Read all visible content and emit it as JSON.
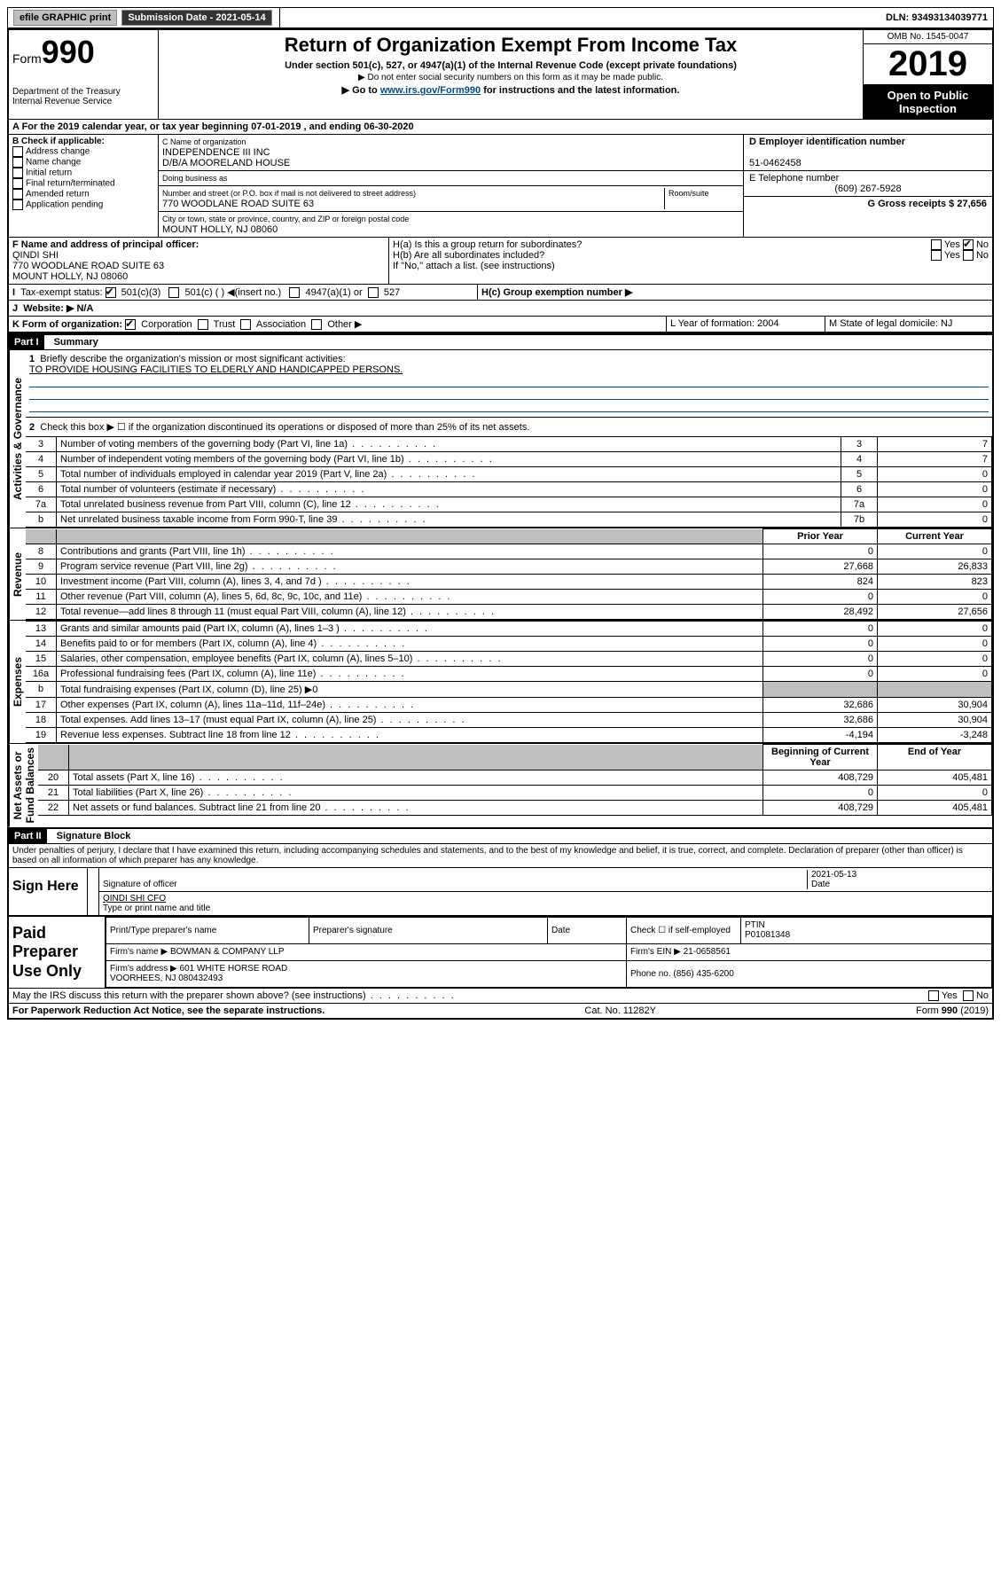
{
  "topbar": {
    "efile": "efile GRAPHIC print",
    "submission": "Submission Date - 2021-05-14",
    "dln": "DLN: 93493134039771"
  },
  "header": {
    "form_label": "Form",
    "form_no": "990",
    "dept": "Department of the Treasury\nInternal Revenue Service",
    "title": "Return of Organization Exempt From Income Tax",
    "sub1": "Under section 501(c), 527, or 4947(a)(1) of the Internal Revenue Code (except private foundations)",
    "sub2": "▶ Do not enter social security numbers on this form as it may be made public.",
    "sub3_pre": "▶ Go to ",
    "sub3_link": "www.irs.gov/Form990",
    "sub3_post": " for instructions and the latest information.",
    "omb": "OMB No. 1545-0047",
    "year": "2019",
    "open": "Open to Public Inspection"
  },
  "row_a": "A For the 2019 calendar year, or tax year beginning 07-01-2019   , and ending 06-30-2020",
  "col_b": {
    "title": "B Check if applicable:",
    "items": [
      "Address change",
      "Name change",
      "Initial return",
      "Final return/terminated",
      "Amended return",
      "Application pending"
    ]
  },
  "col_c": {
    "name_lbl": "C Name of organization",
    "name": "INDEPENDENCE III INC\nD/B/A MOORELAND HOUSE",
    "dba_lbl": "Doing business as",
    "addr_lbl": "Number and street (or P.O. box if mail is not delivered to street address)",
    "room_lbl": "Room/suite",
    "addr": "770 WOODLANE ROAD SUITE 63",
    "city_lbl": "City or town, state or province, country, and ZIP or foreign postal code",
    "city": "MOUNT HOLLY, NJ  08060"
  },
  "col_d": {
    "d": "D Employer identification number",
    "ein": "51-0462458",
    "e": "E Telephone number",
    "phone": "(609) 267-5928",
    "g": "G Gross receipts $ 27,656"
  },
  "fgj": {
    "f_lbl": "F  Name and address of principal officer:",
    "f_name": "QINDI SHI\n770 WOODLANE ROAD SUITE 63\nMOUNT HOLLY, NJ  08060",
    "h_a": "H(a)  Is this a group return for subordinates?",
    "h_b": "H(b)  Are all subordinates included?",
    "h_note": "If \"No,\" attach a list. (see instructions)",
    "h_c": "H(c)  Group exemption number ▶",
    "i": "Tax-exempt status:",
    "i_501c3": "501(c)(3)",
    "i_501c": "501(c) (   ) ◀(insert no.)",
    "i_4947": "4947(a)(1) or",
    "i_527": "527",
    "j": "Website: ▶  N/A",
    "yes": "Yes",
    "no": "No"
  },
  "row_k": {
    "k": "K Form of organization:",
    "corp": "Corporation",
    "trust": "Trust",
    "assoc": "Association",
    "other": "Other ▶",
    "l": "L Year of formation: 2004",
    "m": "M State of legal domicile: NJ"
  },
  "part1": {
    "label": "Part I",
    "title": "Summary",
    "side_gov": "Activities & Governance",
    "side_rev": "Revenue",
    "side_exp": "Expenses",
    "side_net": "Net Assets or\nFund Balances",
    "line1": "Briefly describe the organization's mission or most significant activities:",
    "mission": "TO PROVIDE HOUSING FACILITIES TO ELDERLY AND HANDICAPPED PERSONS.",
    "line2": "Check this box ▶ ☐  if the organization discontinued its operations or disposed of more than 25% of its net assets.",
    "rows_gov": [
      {
        "n": "3",
        "d": "Number of voting members of the governing body (Part VI, line 1a)",
        "b": "3",
        "v": "7"
      },
      {
        "n": "4",
        "d": "Number of independent voting members of the governing body (Part VI, line 1b)",
        "b": "4",
        "v": "7"
      },
      {
        "n": "5",
        "d": "Total number of individuals employed in calendar year 2019 (Part V, line 2a)",
        "b": "5",
        "v": "0"
      },
      {
        "n": "6",
        "d": "Total number of volunteers (estimate if necessary)",
        "b": "6",
        "v": "0"
      },
      {
        "n": "7a",
        "d": "Total unrelated business revenue from Part VIII, column (C), line 12",
        "b": "7a",
        "v": "0"
      },
      {
        "n": "b",
        "d": "Net unrelated business taxable income from Form 990-T, line 39",
        "b": "7b",
        "v": "0"
      }
    ],
    "hdr_prior": "Prior Year",
    "hdr_curr": "Current Year",
    "rows_rev": [
      {
        "n": "8",
        "d": "Contributions and grants (Part VIII, line 1h)",
        "p": "0",
        "c": "0"
      },
      {
        "n": "9",
        "d": "Program service revenue (Part VIII, line 2g)",
        "p": "27,668",
        "c": "26,833"
      },
      {
        "n": "10",
        "d": "Investment income (Part VIII, column (A), lines 3, 4, and 7d )",
        "p": "824",
        "c": "823"
      },
      {
        "n": "11",
        "d": "Other revenue (Part VIII, column (A), lines 5, 6d, 8c, 9c, 10c, and 11e)",
        "p": "0",
        "c": "0"
      },
      {
        "n": "12",
        "d": "Total revenue—add lines 8 through 11 (must equal Part VIII, column (A), line 12)",
        "p": "28,492",
        "c": "27,656"
      }
    ],
    "rows_exp": [
      {
        "n": "13",
        "d": "Grants and similar amounts paid (Part IX, column (A), lines 1–3 )",
        "p": "0",
        "c": "0"
      },
      {
        "n": "14",
        "d": "Benefits paid to or for members (Part IX, column (A), line 4)",
        "p": "0",
        "c": "0"
      },
      {
        "n": "15",
        "d": "Salaries, other compensation, employee benefits (Part IX, column (A), lines 5–10)",
        "p": "0",
        "c": "0"
      },
      {
        "n": "16a",
        "d": "Professional fundraising fees (Part IX, column (A), line 11e)",
        "p": "0",
        "c": "0"
      },
      {
        "n": "b",
        "d": "Total fundraising expenses (Part IX, column (D), line 25) ▶0",
        "p": "",
        "c": ""
      },
      {
        "n": "17",
        "d": "Other expenses (Part IX, column (A), lines 11a–11d, 11f–24e)",
        "p": "32,686",
        "c": "30,904"
      },
      {
        "n": "18",
        "d": "Total expenses. Add lines 13–17 (must equal Part IX, column (A), line 25)",
        "p": "32,686",
        "c": "30,904"
      },
      {
        "n": "19",
        "d": "Revenue less expenses. Subtract line 18 from line 12",
        "p": "-4,194",
        "c": "-3,248"
      }
    ],
    "hdr_beg": "Beginning of Current Year",
    "hdr_end": "End of Year",
    "rows_net": [
      {
        "n": "20",
        "d": "Total assets (Part X, line 16)",
        "p": "408,729",
        "c": "405,481"
      },
      {
        "n": "21",
        "d": "Total liabilities (Part X, line 26)",
        "p": "0",
        "c": "0"
      },
      {
        "n": "22",
        "d": "Net assets or fund balances. Subtract line 21 from line 20",
        "p": "408,729",
        "c": "405,481"
      }
    ]
  },
  "part2": {
    "label": "Part II",
    "title": "Signature Block",
    "decl": "Under penalties of perjury, I declare that I have examined this return, including accompanying schedules and statements, and to the best of my knowledge and belief, it is true, correct, and complete. Declaration of preparer (other than officer) is based on all information of which preparer has any knowledge.",
    "sign_here": "Sign Here",
    "sig_off": "Signature of officer",
    "sig_date": "2021-05-13",
    "date_lbl": "Date",
    "name_title": "QINDI SHI CFO",
    "type_lbl": "Type or print name and title",
    "paid": "Paid Preparer Use Only",
    "pt_name_lbl": "Print/Type preparer's name",
    "pt_sig_lbl": "Preparer's signature",
    "pt_date_lbl": "Date",
    "pt_check": "Check ☐ if self-employed",
    "ptin_lbl": "PTIN",
    "ptin": "P01081348",
    "firm_name_lbl": "Firm's name     ▶",
    "firm_name": "BOWMAN & COMPANY LLP",
    "firm_ein_lbl": "Firm's EIN ▶",
    "firm_ein": "21-0658561",
    "firm_addr_lbl": "Firm's address ▶",
    "firm_addr": "601 WHITE HORSE ROAD\nVOORHEES, NJ  080432493",
    "phone_lbl": "Phone no.",
    "phone": "(856) 435-6200",
    "discuss": "May the IRS discuss this return with the preparer shown above? (see instructions)"
  },
  "footer": {
    "pra": "For Paperwork Reduction Act Notice, see the separate instructions.",
    "cat": "Cat. No. 11282Y",
    "form": "Form 990 (2019)"
  }
}
